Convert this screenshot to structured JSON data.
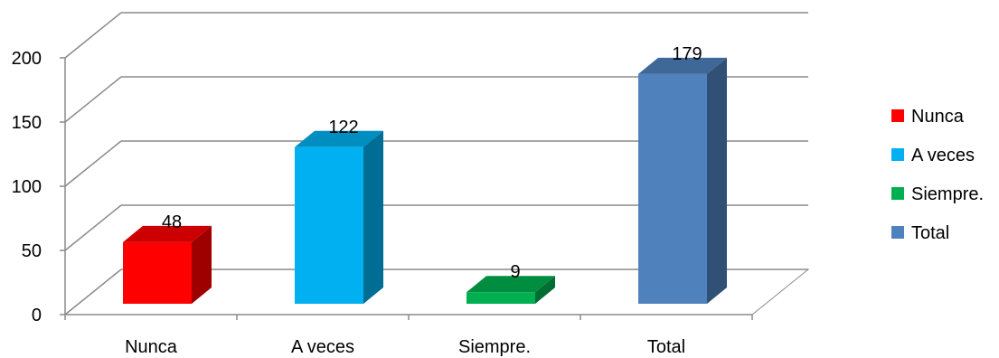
{
  "chart_data": {
    "type": "bar",
    "categories": [
      "Nunca",
      "A veces",
      "Siempre.",
      "Total"
    ],
    "values": [
      48,
      122,
      9,
      179
    ],
    "colors": [
      "#ff0000",
      "#00b0f0",
      "#00b050",
      "#4f81bd"
    ],
    "title": "",
    "xlabel": "",
    "ylabel": "",
    "ylim": [
      0,
      200
    ],
    "yticks": [
      0,
      50,
      100,
      150,
      200
    ],
    "grid": true,
    "three_d": true,
    "legend": {
      "placement": "right",
      "entries": [
        "Nunca",
        "A veces",
        "Siempre.",
        "Total"
      ]
    }
  }
}
